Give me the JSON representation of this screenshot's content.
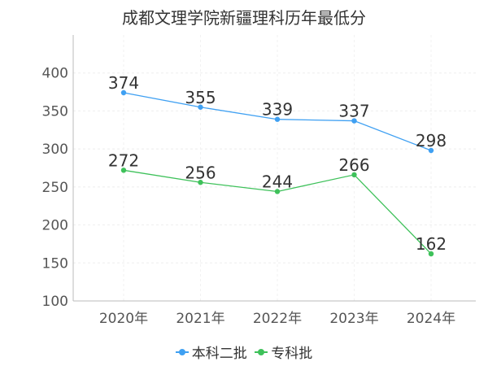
{
  "chart_data": {
    "type": "line",
    "title": "成都文理学院新疆理科历年最低分",
    "categories": [
      "2020年",
      "2021年",
      "2022年",
      "2023年",
      "2024年"
    ],
    "series": [
      {
        "name": "本科二批",
        "values": [
          374,
          355,
          339,
          337,
          298
        ],
        "color": "#3fa0f2"
      },
      {
        "name": "专科批",
        "values": [
          272,
          256,
          244,
          266,
          162
        ],
        "color": "#3ec15a"
      }
    ],
    "yticks": [
      100,
      150,
      200,
      250,
      300,
      350,
      400
    ],
    "ylim": [
      100,
      450
    ],
    "xlabel": "",
    "ylabel": "",
    "grid": true,
    "legend": "bottom-center"
  }
}
